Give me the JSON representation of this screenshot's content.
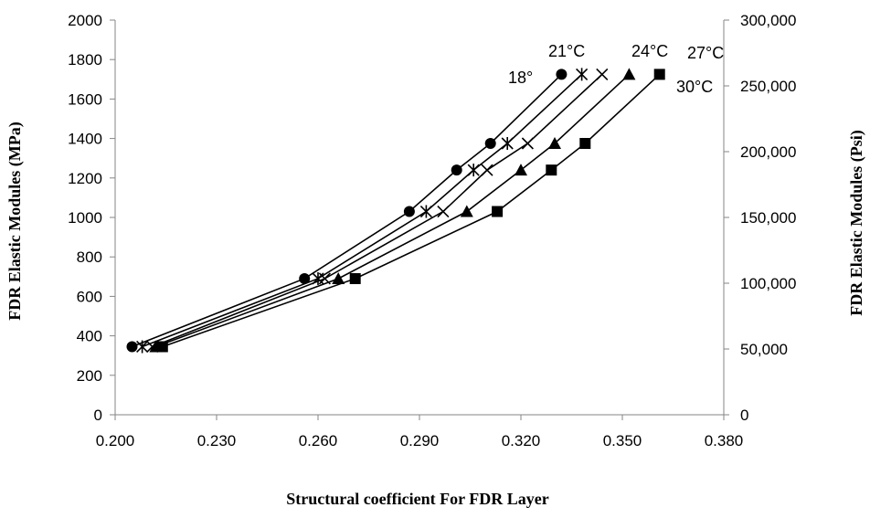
{
  "chart_data": {
    "type": "line",
    "xlabel": "Structural coefficient  For FDR Layer",
    "ylabel_left": "FDR Elastic Modules (MPa)",
    "ylabel_right": "FDR Elastic Modules (Psi)",
    "xlim": [
      0.2,
      0.38
    ],
    "ylim_left": [
      0,
      2000
    ],
    "ylim_right": [
      0,
      300000
    ],
    "x_ticks": [
      "0.200",
      "0.230",
      "0.260",
      "0.290",
      "0.320",
      "0.350",
      "0.380"
    ],
    "x_tick_values": [
      0.2,
      0.23,
      0.26,
      0.29,
      0.32,
      0.35,
      0.38
    ],
    "y_left_ticks": [
      "0",
      "200",
      "400",
      "600",
      "800",
      "1000",
      "1200",
      "1400",
      "1600",
      "1800",
      "2000"
    ],
    "y_left_tick_values": [
      0,
      200,
      400,
      600,
      800,
      1000,
      1200,
      1400,
      1600,
      1800,
      2000
    ],
    "y_right_ticks": [
      "0",
      "50,000",
      "100,000",
      "150,000",
      "200,000",
      "250,000",
      "300,000"
    ],
    "y_right_tick_values": [
      0,
      50000,
      100000,
      150000,
      200000,
      250000,
      300000
    ],
    "grid": false,
    "legend": "none",
    "line_color": "#000000",
    "series": [
      {
        "name": "18°",
        "marker": "circle",
        "x": [
          0.205,
          0.256,
          0.287,
          0.301,
          0.311,
          0.332
        ],
        "y": [
          345,
          690,
          1030,
          1240,
          1375,
          1725
        ]
      },
      {
        "name": "21°C",
        "marker": "star",
        "x": [
          0.208,
          0.26,
          0.292,
          0.306,
          0.316,
          0.338
        ],
        "y": [
          345,
          690,
          1030,
          1240,
          1375,
          1725
        ]
      },
      {
        "name": "24°C",
        "marker": "x",
        "x": [
          0.211,
          0.262,
          0.297,
          0.31,
          0.322,
          0.344
        ],
        "y": [
          345,
          690,
          1030,
          1240,
          1375,
          1725
        ]
      },
      {
        "name": "27°C",
        "marker": "triangle",
        "x": [
          0.212,
          0.266,
          0.304,
          0.32,
          0.33,
          0.352
        ],
        "y": [
          345,
          690,
          1030,
          1240,
          1375,
          1725
        ]
      },
      {
        "name": "30°C",
        "marker": "square",
        "x": [
          0.214,
          0.271,
          0.313,
          0.329,
          0.339,
          0.361
        ],
        "y": [
          345,
          690,
          1030,
          1240,
          1375,
          1725
        ]
      }
    ]
  }
}
